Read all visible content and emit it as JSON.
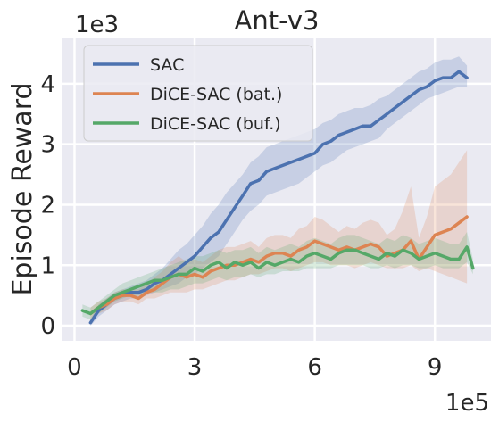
{
  "chart_data": {
    "type": "line",
    "title": "Ant-v3",
    "xlabel": "",
    "ylabel": "Episode Reward",
    "x_multiplier_label": "1e5",
    "y_multiplier_label": "1e3",
    "xlim": [
      -0.3,
      10.4
    ],
    "ylim": [
      -0.25,
      4.75
    ],
    "xticks": [
      0,
      3,
      6,
      9
    ],
    "yticks": [
      0,
      1,
      2,
      3,
      4
    ],
    "grid": true,
    "legend_position": "top-left",
    "series": [
      {
        "name": "SAC",
        "color": "#4c72b0",
        "x": [
          0.4,
          0.6,
          0.8,
          1.0,
          1.2,
          1.4,
          1.6,
          1.8,
          2.0,
          2.2,
          2.4,
          2.6,
          2.8,
          3.0,
          3.2,
          3.4,
          3.6,
          3.8,
          4.0,
          4.2,
          4.4,
          4.6,
          4.8,
          5.0,
          5.2,
          5.4,
          5.6,
          5.8,
          6.0,
          6.2,
          6.4,
          6.6,
          6.8,
          7.0,
          7.2,
          7.4,
          7.6,
          7.8,
          8.0,
          8.2,
          8.4,
          8.6,
          8.8,
          9.0,
          9.2,
          9.4,
          9.6,
          9.8
        ],
        "y": [
          0.05,
          0.25,
          0.35,
          0.45,
          0.5,
          0.55,
          0.55,
          0.6,
          0.7,
          0.75,
          0.85,
          0.95,
          1.05,
          1.15,
          1.3,
          1.45,
          1.55,
          1.75,
          1.95,
          2.15,
          2.35,
          2.4,
          2.55,
          2.6,
          2.65,
          2.7,
          2.75,
          2.8,
          2.85,
          3.0,
          3.05,
          3.15,
          3.2,
          3.25,
          3.3,
          3.3,
          3.4,
          3.5,
          3.6,
          3.7,
          3.8,
          3.9,
          3.95,
          4.05,
          4.1,
          4.1,
          4.2,
          4.1
        ],
        "band_lower": [
          0.0,
          0.15,
          0.25,
          0.35,
          0.4,
          0.45,
          0.45,
          0.5,
          0.55,
          0.6,
          0.65,
          0.7,
          0.8,
          0.85,
          0.95,
          1.05,
          1.15,
          1.35,
          1.55,
          1.75,
          1.9,
          2.0,
          2.15,
          2.2,
          2.25,
          2.3,
          2.35,
          2.45,
          2.55,
          2.65,
          2.7,
          2.8,
          2.9,
          2.95,
          3.0,
          3.05,
          3.1,
          3.25,
          3.35,
          3.45,
          3.55,
          3.65,
          3.75,
          3.8,
          3.85,
          3.9,
          3.95,
          3.95
        ],
        "band_upper": [
          0.1,
          0.35,
          0.45,
          0.55,
          0.6,
          0.65,
          0.7,
          0.75,
          0.85,
          0.95,
          1.1,
          1.25,
          1.35,
          1.5,
          1.65,
          1.85,
          2.0,
          2.2,
          2.35,
          2.5,
          2.7,
          2.8,
          2.95,
          3.0,
          3.05,
          3.1,
          3.15,
          3.2,
          3.25,
          3.35,
          3.4,
          3.5,
          3.55,
          3.6,
          3.6,
          3.65,
          3.75,
          3.8,
          3.9,
          4.0,
          4.1,
          4.2,
          4.25,
          4.35,
          4.4,
          4.4,
          4.45,
          4.3
        ]
      },
      {
        "name": "DiCE-SAC (bat.)",
        "color": "#dd8452",
        "x": [
          0.4,
          0.6,
          0.8,
          1.0,
          1.2,
          1.4,
          1.6,
          1.8,
          2.0,
          2.2,
          2.4,
          2.6,
          2.8,
          3.0,
          3.2,
          3.4,
          3.6,
          3.8,
          4.0,
          4.2,
          4.4,
          4.6,
          4.8,
          5.0,
          5.2,
          5.4,
          5.6,
          5.8,
          6.0,
          6.2,
          6.4,
          6.6,
          6.8,
          7.0,
          7.2,
          7.4,
          7.6,
          7.8,
          8.0,
          8.2,
          8.4,
          8.6,
          8.8,
          9.0,
          9.2,
          9.4,
          9.6,
          9.8
        ],
        "y": [
          0.2,
          0.3,
          0.35,
          0.45,
          0.5,
          0.5,
          0.45,
          0.55,
          0.6,
          0.7,
          0.8,
          0.85,
          0.8,
          0.85,
          0.8,
          0.9,
          0.95,
          1.0,
          1.0,
          1.05,
          1.1,
          1.05,
          1.15,
          1.2,
          1.2,
          1.15,
          1.25,
          1.3,
          1.4,
          1.35,
          1.3,
          1.25,
          1.3,
          1.25,
          1.3,
          1.35,
          1.3,
          1.15,
          1.2,
          1.25,
          1.4,
          1.1,
          1.3,
          1.5,
          1.55,
          1.6,
          1.7,
          1.8
        ],
        "band_lower": [
          0.1,
          0.2,
          0.25,
          0.35,
          0.4,
          0.4,
          0.35,
          0.45,
          0.45,
          0.5,
          0.55,
          0.55,
          0.55,
          0.6,
          0.6,
          0.65,
          0.7,
          0.75,
          0.75,
          0.8,
          0.85,
          0.85,
          0.9,
          0.95,
          0.95,
          0.9,
          0.95,
          1.0,
          1.05,
          1.05,
          1.0,
          1.0,
          1.0,
          0.95,
          1.0,
          1.05,
          1.0,
          0.95,
          0.95,
          0.95,
          1.0,
          0.9,
          0.95,
          0.9,
          0.85,
          0.8,
          0.75,
          0.7
        ],
        "band_upper": [
          0.3,
          0.4,
          0.45,
          0.55,
          0.6,
          0.6,
          0.6,
          0.7,
          0.8,
          0.9,
          1.05,
          1.15,
          1.05,
          1.1,
          1.05,
          1.15,
          1.25,
          1.3,
          1.3,
          1.35,
          1.4,
          1.3,
          1.45,
          1.5,
          1.5,
          1.45,
          1.6,
          1.65,
          1.8,
          1.75,
          1.65,
          1.55,
          1.65,
          1.6,
          1.7,
          1.75,
          1.7,
          1.5,
          1.6,
          1.9,
          2.3,
          1.45,
          1.8,
          2.3,
          2.4,
          2.5,
          2.7,
          2.9
        ]
      },
      {
        "name": "DiCE-SAC (buf.)",
        "color": "#55a868",
        "x": [
          0.2,
          0.4,
          0.6,
          0.8,
          1.0,
          1.2,
          1.4,
          1.6,
          1.8,
          2.0,
          2.2,
          2.4,
          2.6,
          2.8,
          3.0,
          3.2,
          3.4,
          3.6,
          3.8,
          4.0,
          4.2,
          4.4,
          4.6,
          4.8,
          5.0,
          5.2,
          5.4,
          5.6,
          5.8,
          6.0,
          6.2,
          6.4,
          6.6,
          6.8,
          7.0,
          7.2,
          7.4,
          7.6,
          7.8,
          8.0,
          8.2,
          8.4,
          8.6,
          8.8,
          9.0,
          9.2,
          9.4,
          9.6,
          9.8,
          9.95
        ],
        "y": [
          0.25,
          0.2,
          0.3,
          0.4,
          0.5,
          0.55,
          0.6,
          0.65,
          0.7,
          0.75,
          0.75,
          0.8,
          0.85,
          0.85,
          0.95,
          0.9,
          1.0,
          1.05,
          0.95,
          1.05,
          1.0,
          1.05,
          0.95,
          1.05,
          1.0,
          1.05,
          1.1,
          1.05,
          1.15,
          1.2,
          1.15,
          1.1,
          1.2,
          1.25,
          1.25,
          1.2,
          1.15,
          1.1,
          1.2,
          1.15,
          1.25,
          1.2,
          1.1,
          1.15,
          1.2,
          1.15,
          1.1,
          1.1,
          1.3,
          0.95
        ],
        "band_lower": [
          0.15,
          0.1,
          0.2,
          0.3,
          0.4,
          0.45,
          0.5,
          0.5,
          0.55,
          0.55,
          0.55,
          0.6,
          0.6,
          0.65,
          0.7,
          0.7,
          0.75,
          0.8,
          0.75,
          0.8,
          0.8,
          0.85,
          0.8,
          0.85,
          0.85,
          0.9,
          0.9,
          0.9,
          0.95,
          0.95,
          0.95,
          0.95,
          1.0,
          1.0,
          1.0,
          1.0,
          0.95,
          0.95,
          1.0,
          0.95,
          1.0,
          1.0,
          0.95,
          0.95,
          1.0,
          0.95,
          0.95,
          0.95,
          1.05,
          0.85
        ],
        "band_upper": [
          0.35,
          0.3,
          0.4,
          0.5,
          0.6,
          0.7,
          0.75,
          0.8,
          0.85,
          0.9,
          0.95,
          1.0,
          1.05,
          1.1,
          1.15,
          1.15,
          1.2,
          1.25,
          1.2,
          1.25,
          1.25,
          1.3,
          1.2,
          1.3,
          1.25,
          1.3,
          1.35,
          1.3,
          1.4,
          1.45,
          1.4,
          1.35,
          1.45,
          1.5,
          1.5,
          1.45,
          1.4,
          1.35,
          1.45,
          1.4,
          1.5,
          1.45,
          1.35,
          1.4,
          1.45,
          1.4,
          1.35,
          1.35,
          1.55,
          1.1
        ]
      }
    ]
  }
}
